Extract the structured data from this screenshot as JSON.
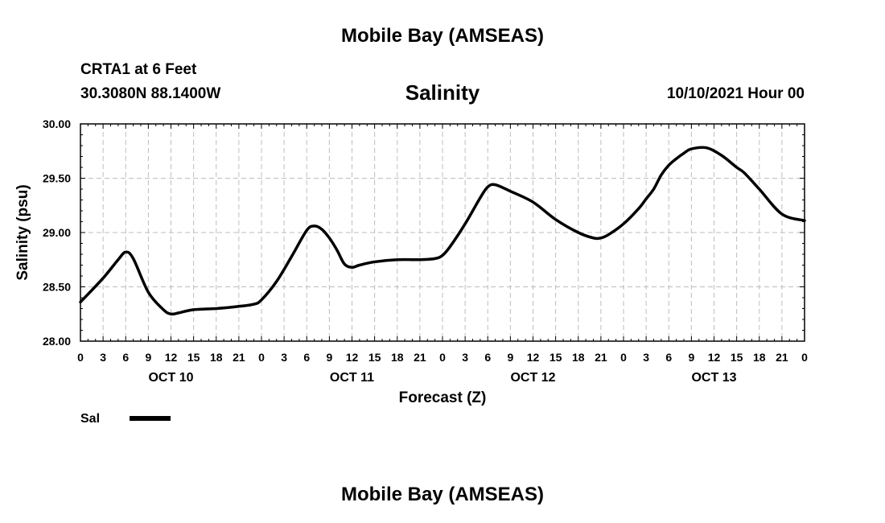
{
  "header": {
    "title_top": "Mobile Bay (AMSEAS)",
    "station": "CRTA1 at 6 Feet",
    "coords": "30.3080N  88.1400W",
    "variable": "Salinity",
    "run_time": "10/10/2021 Hour 00",
    "title_bottom": "Mobile Bay (AMSEAS)"
  },
  "legend": {
    "label": "Sal"
  },
  "chart_data": {
    "type": "line",
    "title": "Salinity",
    "xlabel": "Forecast (Z)",
    "ylabel": "Salinity (psu)",
    "ylim": [
      28.0,
      30.0
    ],
    "yticks": [
      "28.00",
      "28.50",
      "29.00",
      "29.50",
      "30.00"
    ],
    "xlim": [
      0,
      96
    ],
    "xticks": [
      "0",
      "3",
      "6",
      "9",
      "12",
      "15",
      "18",
      "21",
      "0",
      "3",
      "6",
      "9",
      "12",
      "15",
      "18",
      "21",
      "0",
      "3",
      "6",
      "9",
      "12",
      "15",
      "18",
      "21",
      "0",
      "3",
      "6",
      "9",
      "12",
      "15",
      "18",
      "21",
      "0"
    ],
    "day_labels": [
      {
        "label": "OCT 10",
        "hour": 12
      },
      {
        "label": "OCT 11",
        "hour": 36
      },
      {
        "label": "OCT 12",
        "hour": 60
      },
      {
        "label": "OCT 13",
        "hour": 84
      }
    ],
    "grid": true,
    "series": [
      {
        "name": "Sal",
        "color": "#000000",
        "x": [
          0,
          3,
          5,
          6,
          7,
          9,
          11,
          12,
          13,
          15,
          18,
          21,
          23,
          24,
          26,
          28,
          30,
          31,
          32,
          33,
          34,
          35,
          36,
          37,
          39,
          42,
          45,
          47,
          48,
          49,
          51,
          53,
          54,
          55,
          57,
          60,
          63,
          66,
          68,
          69,
          70,
          72,
          74,
          75,
          76,
          77,
          78,
          79,
          80,
          81,
          83,
          85,
          87,
          88,
          90,
          93,
          96
        ],
        "values": [
          28.36,
          28.58,
          28.75,
          28.82,
          28.76,
          28.45,
          28.29,
          28.25,
          28.26,
          28.29,
          28.3,
          28.32,
          28.34,
          28.38,
          28.55,
          28.78,
          29.02,
          29.06,
          29.03,
          28.95,
          28.84,
          28.71,
          28.68,
          28.7,
          28.73,
          28.75,
          28.75,
          28.76,
          28.79,
          28.87,
          29.08,
          29.32,
          29.42,
          29.44,
          29.38,
          29.28,
          29.12,
          29.0,
          28.95,
          28.95,
          28.98,
          29.08,
          29.22,
          29.31,
          29.4,
          29.53,
          29.62,
          29.68,
          29.73,
          29.77,
          29.78,
          29.71,
          29.6,
          29.55,
          29.4,
          29.17,
          29.11
        ]
      }
    ]
  }
}
